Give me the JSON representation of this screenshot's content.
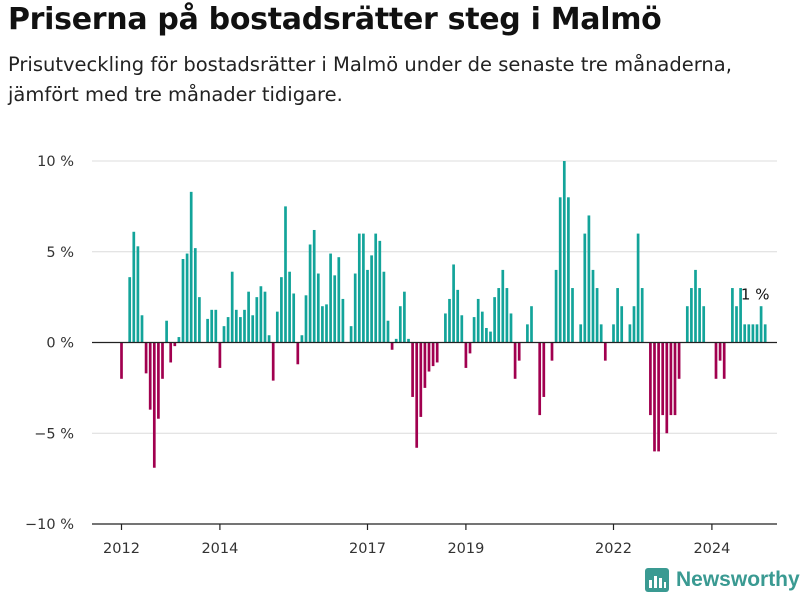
{
  "title": "Priserna på bostadsrätter steg i Malmö",
  "subtitle": "Prisutveckling för bostadsrätter i Malmö under de senaste tre månaderna, jämfört med tre månader tidigare.",
  "brand": "Newsworthy",
  "colors": {
    "positive": "#13a49a",
    "negative": "#a1004f",
    "grid": "#dcdcdc",
    "zero": "#222222",
    "brand": "#3a9a92"
  },
  "chart_data": {
    "type": "bar",
    "ylim": [
      -10,
      10
    ],
    "yticks": [
      -10,
      -5,
      0,
      5,
      10
    ],
    "ytick_labels": [
      "−10 %",
      "−5 %",
      "0 %",
      "5 %",
      "10 %"
    ],
    "xtick_labels": [
      "2012",
      "2014",
      "2017",
      "2019",
      "2022",
      "2024"
    ],
    "xtick_index": [
      0,
      24,
      60,
      84,
      120,
      144
    ],
    "start_index": 0,
    "annotation": {
      "text": "1 %",
      "index": 154
    },
    "values": [
      -2,
      null,
      3.6,
      6.1,
      5.3,
      1.5,
      -1.7,
      -3.7,
      -6.9,
      -4.2,
      -2,
      1.2,
      -1.1,
      -0.2,
      0.3,
      4.6,
      4.9,
      8.3,
      5.2,
      2.5,
      null,
      1.3,
      1.8,
      1.8,
      -1.4,
      0.9,
      1.4,
      3.9,
      1.8,
      1.4,
      1.8,
      2.8,
      1.5,
      2.5,
      3.1,
      2.8,
      0.4,
      -2.1,
      1.7,
      3.6,
      7.5,
      3.9,
      2.7,
      -1.2,
      0.4,
      2.6,
      5.4,
      6.2,
      3.8,
      2,
      2.1,
      4.9,
      3.7,
      4.7,
      2.4,
      null,
      0.9,
      3.8,
      6,
      6,
      4,
      4.8,
      6,
      5.6,
      3.9,
      1.2,
      -0.4,
      0.2,
      2,
      2.8,
      0.2,
      -3,
      -5.8,
      -4.1,
      -2.5,
      -1.6,
      -1.3,
      -1.1,
      null,
      1.6,
      2.4,
      4.3,
      2.9,
      1.5,
      -1.4,
      -0.6,
      1.4,
      2.4,
      1.7,
      0.8,
      0.6,
      2.5,
      3,
      4,
      3,
      1.6,
      -2,
      -1,
      null,
      1,
      2,
      null,
      -4,
      -3,
      null,
      -1,
      4,
      8,
      10,
      8,
      3,
      null,
      1,
      6,
      7,
      4,
      3,
      1,
      -1,
      null,
      1,
      3,
      2,
      null,
      1,
      2,
      6,
      3,
      null,
      -4,
      -6,
      -6,
      -4,
      -5,
      -4,
      -4,
      -2,
      null,
      2,
      3,
      4,
      3,
      2,
      null,
      null,
      -2,
      -1,
      -2,
      null,
      3,
      2,
      3,
      1,
      1,
      1,
      1,
      2,
      1
    ]
  }
}
